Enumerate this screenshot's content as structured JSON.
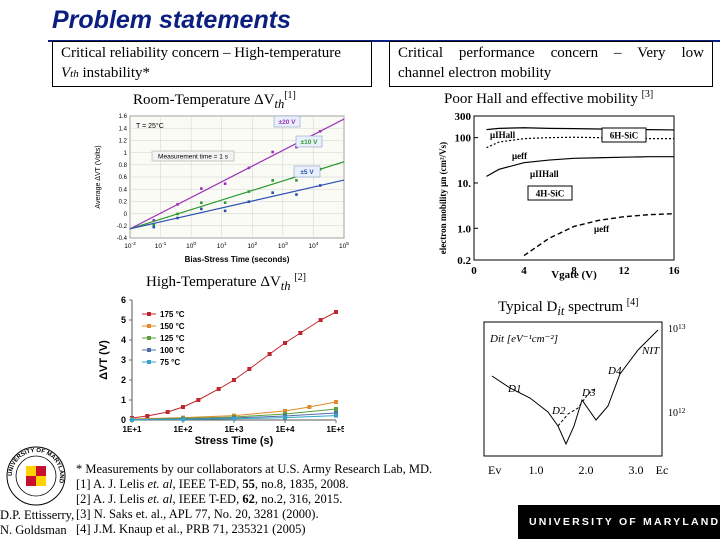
{
  "slide": {
    "title": "Problem statements"
  },
  "left_box": {
    "line1": "Critical reliability concern – High-temperature",
    "line2_var": "V",
    "line2_sub": "th",
    "line2_rest": " instability*"
  },
  "right_box": {
    "line1": "Critical performance concern – Very low",
    "line2": "channel electron mobility"
  },
  "captions": {
    "room_temp": {
      "text": "Room-Temperature ΔV",
      "sub": "th",
      "ref": "[1]"
    },
    "high_temp": {
      "text": "High-Temperature ΔV",
      "sub": "th",
      "ref": "[2]"
    },
    "hall": {
      "text": "Poor Hall and effective mobility",
      "ref": "[3]"
    },
    "dit": {
      "text": "Typical D",
      "sub": "it",
      "rest": " spectrum",
      "ref": "[4]"
    }
  },
  "footnotes": {
    "star": "* Measurements by our collaborators at U.S. Army Research Lab, MD.",
    "ref1_pre": "[1] A. J. Lelis ",
    "ref1_em": "et. al",
    "ref1_mid": ", IEEE T-ED, ",
    "ref1_bold": "55",
    "ref1_post": ", no.8, 1835, 2008.",
    "ref2_pre": "[2] A. J. Lelis ",
    "ref2_em": "et. al",
    "ref2_mid": ", IEEE T-ED, ",
    "ref2_bold": "62",
    "ref2_post": ", no.2, 316, 2015.",
    "ref3": "[3] N. Saks et. al., APL 77, No. 20, 3281 (2000).",
    "ref4": "[4] J.M. Knaup et al., PRB 71, 235321 (2005)"
  },
  "credit": {
    "line1": "D.P. Ettisserry,",
    "line2": "N. Goldsman"
  },
  "branding": {
    "bar_text": "UNIVERSITY OF MARYLAND",
    "seal_text": "UNIVERSITY OF MARYLAND",
    "seal_red": "#c8102e",
    "seal_gold": "#ffd200"
  },
  "chart_data": [
    {
      "type": "line",
      "title": "",
      "xlabel": "Bias-Stress Time (seconds)",
      "ylabel": "Average ΔVT (Volts)",
      "xscale": "log",
      "xlim": [
        0.01,
        100000
      ],
      "ylim": [
        -0.4,
        1.6
      ],
      "x_ticks": [
        "10^-2",
        "10^-1",
        "10^0",
        "10^1",
        "10^2",
        "10^3",
        "10^4",
        "10^5"
      ],
      "y_ticks": [
        "-0.4",
        "-0.2",
        "0",
        "0.2",
        "0.4",
        "0.6",
        "0.8",
        "1",
        "1.2",
        "1.4",
        "1.6"
      ],
      "annotations": [
        "T = 25°C",
        "Measurement time = 1 s"
      ],
      "grid": true,
      "series": [
        {
          "name": "±20 V",
          "color": "#9b30b8",
          "x": [
            0.01,
            100000
          ],
          "y": [
            -0.25,
            1.55
          ]
        },
        {
          "name": "±10 V",
          "color": "#2e9a2e",
          "x": [
            0.01,
            100000
          ],
          "y": [
            -0.25,
            0.85
          ]
        },
        {
          "name": "±5 V",
          "color": "#2b4fb3",
          "x": [
            0.01,
            100000
          ],
          "y": [
            -0.25,
            0.55
          ]
        }
      ]
    },
    {
      "type": "line",
      "title": "",
      "xlabel": "Stress Time (s)",
      "ylabel": "ΔVT (V)",
      "xscale": "log",
      "xlim": [
        10,
        100000
      ],
      "ylim": [
        0,
        6
      ],
      "x_ticks": [
        "1E+1",
        "1E+2",
        "1E+3",
        "1E+4",
        "1E+5"
      ],
      "y_ticks": [
        "0",
        "1",
        "2",
        "3",
        "4",
        "5",
        "6"
      ],
      "legend": "top-right",
      "series": [
        {
          "name": "175 °C",
          "color": "#c0262d",
          "x": [
            10,
            20,
            50,
            100,
            200,
            500,
            1000,
            2000,
            5000,
            10000,
            20000,
            50000,
            100000
          ],
          "y": [
            0.1,
            0.2,
            0.4,
            0.65,
            1.0,
            1.55,
            2.0,
            2.55,
            3.3,
            3.85,
            4.35,
            5.0,
            5.4
          ]
        },
        {
          "name": "150 °C",
          "color": "#e08a2a",
          "x": [
            10,
            100,
            1000,
            10000,
            30000,
            100000
          ],
          "y": [
            0.05,
            0.12,
            0.22,
            0.45,
            0.65,
            0.9
          ]
        },
        {
          "name": "125 °C",
          "color": "#5a9f3a",
          "x": [
            10,
            100,
            1000,
            10000,
            100000
          ],
          "y": [
            0.03,
            0.08,
            0.15,
            0.3,
            0.55
          ]
        },
        {
          "name": "100 °C",
          "color": "#4f6fa8",
          "x": [
            10,
            100,
            1000,
            10000,
            100000
          ],
          "y": [
            0.02,
            0.05,
            0.1,
            0.2,
            0.35
          ]
        },
        {
          "name": "75 °C",
          "color": "#36a3c9",
          "x": [
            10,
            100,
            1000,
            10000,
            100000
          ],
          "y": [
            0.01,
            0.03,
            0.06,
            0.12,
            0.22
          ]
        }
      ]
    },
    {
      "type": "line",
      "title": "",
      "xlabel": "Vgate (V)",
      "ylabel": "electron mobility μn (cm²/Vs)",
      "yscale": "log",
      "xlim": [
        0,
        16
      ],
      "ylim": [
        0.2,
        300
      ],
      "x_ticks": [
        "0",
        "4",
        "8",
        "12",
        "16"
      ],
      "y_ticks": [
        "0.2",
        "1.0",
        "10.",
        "100",
        "300"
      ],
      "annotations": [
        "6H-SiC",
        "4H-SiC",
        "μIHall",
        "μeff",
        "μIIHall",
        "μeff"
      ],
      "series": [
        {
          "name": "6H-SiC μIHall",
          "color": "#000000",
          "x": [
            1,
            2,
            4,
            6,
            8,
            10,
            12,
            14,
            16
          ],
          "y": [
            150,
            160,
            165,
            160,
            158,
            155,
            150,
            150,
            148
          ]
        },
        {
          "name": "6H-SiC μeff",
          "color": "#000000",
          "x": [
            1,
            2,
            4,
            6,
            8,
            10,
            12,
            14,
            16
          ],
          "y": [
            60,
            80,
            95,
            100,
            102,
            100,
            98,
            95,
            95
          ]
        },
        {
          "name": "4H-SiC μIIHall",
          "color": "#000000",
          "x": [
            1,
            2,
            4,
            6,
            8,
            10,
            12,
            14,
            16
          ],
          "y": [
            14,
            20,
            28,
            32,
            35,
            36,
            37,
            38,
            38
          ]
        },
        {
          "name": "4H-SiC μeff",
          "color": "#000000",
          "x": [
            4,
            6,
            8,
            10,
            12,
            14,
            16
          ],
          "y": [
            0.25,
            0.6,
            1.1,
            1.5,
            1.8,
            2.0,
            2.1
          ]
        }
      ]
    },
    {
      "type": "line",
      "title": "",
      "ylabel": "Dit [eV⁻¹cm⁻²]",
      "yscale": "log",
      "x_ticks": [
        "Ev",
        "1.0",
        "2.0",
        "3.0",
        "Ec"
      ],
      "y_ticks": [
        "10^13",
        "10^12"
      ],
      "annotations": [
        "NIT",
        "D1",
        "D2",
        "D3",
        "D4"
      ],
      "series": [
        {
          "name": "Dit",
          "color": "#000000",
          "x": [
            0.3,
            0.6,
            1.0,
            1.4,
            1.7,
            1.9,
            2.1,
            2.4,
            2.7,
            3.0,
            3.2
          ],
          "y": [
            1200000000000.0,
            800000000000.0,
            500000000000.0,
            400000000000.0,
            500000000000.0,
            900000000000.0,
            400000000000.0,
            600000000000.0,
            1500000000000.0,
            4000000000000.0,
            9000000000000.0
          ]
        }
      ]
    }
  ]
}
